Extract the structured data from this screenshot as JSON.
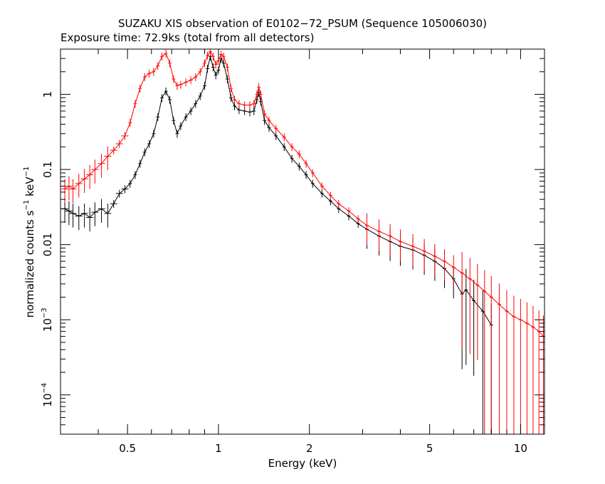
{
  "chart_data": {
    "type": "scatter",
    "title": "SUZAKU XIS observation of E0102−72_PSUM (Sequence 105006030)",
    "subtitle": "Exposure time: 72.9ks (total from all detectors)",
    "xlabel": "Energy (keV)",
    "ylabel_main": "normalized counts s",
    "ylabel_mid": " keV",
    "ylabel_exp": "−1",
    "x_scale": "log",
    "y_scale": "log",
    "xlim": [
      0.3,
      12
    ],
    "ylim": [
      3e-05,
      4.0
    ],
    "x_ticks": [
      {
        "value": 0.5,
        "label": "0.5"
      },
      {
        "value": 1,
        "label": "1"
      },
      {
        "value": 2,
        "label": "2"
      },
      {
        "value": 5,
        "label": "5"
      },
      {
        "value": 10,
        "label": "10"
      }
    ],
    "y_ticks": [
      {
        "value": 1,
        "label": "1",
        "exp": ""
      },
      {
        "value": 0.1,
        "label": "0.1",
        "exp": ""
      },
      {
        "value": 0.01,
        "label": "0.01",
        "exp": ""
      },
      {
        "value": 0.001,
        "label": "10",
        "exp": "−3"
      },
      {
        "value": 0.0001,
        "label": "10",
        "exp": "−4"
      }
    ],
    "series": [
      {
        "color": "#000000",
        "points": [
          [
            0.31,
            0.03
          ],
          [
            0.32,
            0.028
          ],
          [
            0.33,
            0.026
          ],
          [
            0.345,
            0.024
          ],
          [
            0.36,
            0.026
          ],
          [
            0.375,
            0.023
          ],
          [
            0.39,
            0.027
          ],
          [
            0.41,
            0.03
          ],
          [
            0.43,
            0.026
          ],
          [
            0.45,
            0.035
          ],
          [
            0.47,
            0.048
          ],
          [
            0.49,
            0.055
          ],
          [
            0.51,
            0.065
          ],
          [
            0.53,
            0.085
          ],
          [
            0.55,
            0.12
          ],
          [
            0.57,
            0.17
          ],
          [
            0.59,
            0.22
          ],
          [
            0.61,
            0.3
          ],
          [
            0.63,
            0.5
          ],
          [
            0.65,
            0.9
          ],
          [
            0.67,
            1.1
          ],
          [
            0.69,
            0.85
          ],
          [
            0.71,
            0.45
          ],
          [
            0.73,
            0.3
          ],
          [
            0.75,
            0.38
          ],
          [
            0.78,
            0.5
          ],
          [
            0.81,
            0.6
          ],
          [
            0.84,
            0.75
          ],
          [
            0.87,
            0.95
          ],
          [
            0.9,
            1.3
          ],
          [
            0.92,
            2.2
          ],
          [
            0.94,
            3.2
          ],
          [
            0.96,
            2.3
          ],
          [
            0.98,
            1.8
          ],
          [
            1.0,
            2.1
          ],
          [
            1.02,
            3.0
          ],
          [
            1.04,
            2.6
          ],
          [
            1.07,
            1.6
          ],
          [
            1.1,
            0.9
          ],
          [
            1.13,
            0.7
          ],
          [
            1.17,
            0.62
          ],
          [
            1.22,
            0.6
          ],
          [
            1.27,
            0.58
          ],
          [
            1.31,
            0.6
          ],
          [
            1.34,
            0.85
          ],
          [
            1.36,
            1.05
          ],
          [
            1.38,
            0.8
          ],
          [
            1.42,
            0.45
          ],
          [
            1.47,
            0.36
          ],
          [
            1.55,
            0.28
          ],
          [
            1.65,
            0.2
          ],
          [
            1.75,
            0.14
          ],
          [
            1.85,
            0.11
          ],
          [
            1.95,
            0.085
          ],
          [
            2.05,
            0.065
          ],
          [
            2.2,
            0.048
          ],
          [
            2.35,
            0.038
          ],
          [
            2.5,
            0.03
          ],
          [
            2.7,
            0.024
          ],
          [
            2.9,
            0.019
          ],
          [
            3.1,
            0.016
          ],
          [
            3.4,
            0.013
          ],
          [
            3.7,
            0.011
          ],
          [
            4.0,
            0.0095
          ],
          [
            4.4,
            0.0085
          ],
          [
            4.8,
            0.0072
          ],
          [
            5.2,
            0.006
          ],
          [
            5.6,
            0.0048
          ],
          [
            6.0,
            0.0035
          ],
          [
            6.4,
            0.0022
          ],
          [
            6.6,
            0.0025
          ],
          [
            7.0,
            0.0018
          ],
          [
            7.5,
            0.0013
          ],
          [
            8.0,
            0.00085
          ]
        ]
      },
      {
        "color": "#ff0000",
        "points": [
          [
            0.31,
            0.055
          ],
          [
            0.32,
            0.06
          ],
          [
            0.33,
            0.055
          ],
          [
            0.345,
            0.065
          ],
          [
            0.36,
            0.075
          ],
          [
            0.375,
            0.085
          ],
          [
            0.39,
            0.1
          ],
          [
            0.41,
            0.12
          ],
          [
            0.43,
            0.15
          ],
          [
            0.45,
            0.18
          ],
          [
            0.47,
            0.22
          ],
          [
            0.49,
            0.28
          ],
          [
            0.51,
            0.42
          ],
          [
            0.53,
            0.75
          ],
          [
            0.55,
            1.2
          ],
          [
            0.57,
            1.7
          ],
          [
            0.59,
            1.9
          ],
          [
            0.61,
            2.0
          ],
          [
            0.63,
            2.4
          ],
          [
            0.65,
            3.2
          ],
          [
            0.67,
            3.5
          ],
          [
            0.69,
            2.6
          ],
          [
            0.71,
            1.6
          ],
          [
            0.73,
            1.3
          ],
          [
            0.75,
            1.35
          ],
          [
            0.78,
            1.45
          ],
          [
            0.81,
            1.55
          ],
          [
            0.84,
            1.7
          ],
          [
            0.87,
            2.0
          ],
          [
            0.9,
            2.6
          ],
          [
            0.92,
            3.3
          ],
          [
            0.94,
            3.7
          ],
          [
            0.96,
            3.2
          ],
          [
            0.98,
            2.5
          ],
          [
            1.0,
            2.8
          ],
          [
            1.02,
            3.4
          ],
          [
            1.04,
            3.2
          ],
          [
            1.07,
            2.3
          ],
          [
            1.1,
            1.2
          ],
          [
            1.13,
            0.85
          ],
          [
            1.17,
            0.75
          ],
          [
            1.22,
            0.72
          ],
          [
            1.27,
            0.72
          ],
          [
            1.31,
            0.75
          ],
          [
            1.34,
            1.0
          ],
          [
            1.36,
            1.25
          ],
          [
            1.38,
            1.0
          ],
          [
            1.42,
            0.55
          ],
          [
            1.47,
            0.45
          ],
          [
            1.55,
            0.35
          ],
          [
            1.65,
            0.27
          ],
          [
            1.75,
            0.2
          ],
          [
            1.85,
            0.16
          ],
          [
            1.95,
            0.12
          ],
          [
            2.05,
            0.09
          ],
          [
            2.2,
            0.06
          ],
          [
            2.35,
            0.045
          ],
          [
            2.5,
            0.035
          ],
          [
            2.7,
            0.028
          ],
          [
            2.9,
            0.022
          ],
          [
            3.1,
            0.018
          ],
          [
            3.4,
            0.015
          ],
          [
            3.7,
            0.013
          ],
          [
            4.0,
            0.011
          ],
          [
            4.4,
            0.0095
          ],
          [
            4.8,
            0.0082
          ],
          [
            5.2,
            0.007
          ],
          [
            5.6,
            0.006
          ],
          [
            6.0,
            0.005
          ],
          [
            6.4,
            0.0042
          ],
          [
            6.8,
            0.0035
          ],
          [
            7.2,
            0.0029
          ],
          [
            7.6,
            0.0024
          ],
          [
            8.0,
            0.002
          ],
          [
            8.5,
            0.0016
          ],
          [
            9.0,
            0.0013
          ],
          [
            9.5,
            0.0011
          ],
          [
            10.0,
            0.001
          ],
          [
            10.5,
            0.0009
          ],
          [
            11.0,
            0.0008
          ],
          [
            11.5,
            0.0007
          ],
          [
            11.9,
            0.0006
          ]
        ]
      }
    ]
  }
}
